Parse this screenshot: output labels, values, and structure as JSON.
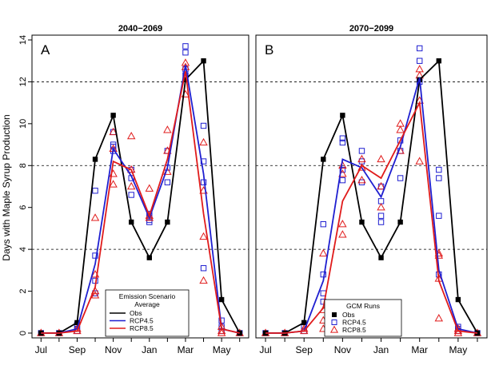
{
  "figure": {
    "ylabel": "Days with Maple Syrup Production"
  },
  "colors": {
    "obs": "#000000",
    "rcp45": "#1f1fd0",
    "rcp85": "#e01b1b",
    "grid": "#000000"
  },
  "chart_data": [
    {
      "type": "line",
      "panel_label": "A",
      "title": "2040−2069",
      "x_ticks": [
        "Jul",
        "Sep",
        "Nov",
        "Jan",
        "Mar",
        "May"
      ],
      "x_tick_positions": [
        0,
        2,
        4,
        6,
        8,
        10
      ],
      "ylim": [
        0,
        14
      ],
      "y_ticks": [
        0,
        2,
        4,
        6,
        8,
        10,
        12,
        14
      ],
      "grid_y": [
        4,
        8,
        12
      ],
      "legend": {
        "title": "Emission Scenario",
        "subtitle": "Average",
        "placement": "bottom-center",
        "entries": [
          "Obs",
          "RCP4.5",
          "RCP8.5"
        ]
      },
      "series": [
        {
          "name": "Obs",
          "style": "line+square",
          "x": [
            0,
            1,
            2,
            3,
            4,
            5,
            6,
            7,
            8,
            9,
            10,
            11
          ],
          "values": [
            0,
            0,
            0.5,
            8.3,
            10.4,
            5.3,
            3.6,
            5.3,
            12.1,
            13.0,
            1.6,
            0
          ]
        },
        {
          "name": "RCP4.5",
          "style": "line",
          "x": [
            0,
            1,
            2,
            3,
            4,
            5,
            6,
            7,
            8,
            9,
            10,
            11
          ],
          "values": [
            0,
            0,
            0.2,
            3.3,
            8.8,
            7.5,
            5.5,
            7.9,
            12.8,
            7.6,
            0.2,
            0
          ]
        },
        {
          "name": "RCP8.5",
          "style": "line",
          "x": [
            0,
            1,
            2,
            3,
            4,
            5,
            6,
            7,
            8,
            9,
            10,
            11
          ],
          "values": [
            0,
            0,
            0.1,
            2.2,
            8.2,
            7.8,
            5.6,
            8.3,
            12.5,
            5.7,
            0.2,
            0
          ]
        },
        {
          "name": "RCP4.5 runs",
          "style": "square-open",
          "points": [
            [
              0,
              0
            ],
            [
              1,
              0
            ],
            [
              2,
              0.2
            ],
            [
              2,
              0.4
            ],
            [
              2,
              0.1
            ],
            [
              3,
              1.9
            ],
            [
              3,
              2.5
            ],
            [
              3,
              3.7
            ],
            [
              3,
              6.8
            ],
            [
              4,
              8.7
            ],
            [
              4,
              9.0
            ],
            [
              4,
              9.6
            ],
            [
              4,
              8.9
            ],
            [
              5,
              6.6
            ],
            [
              5,
              7.4
            ],
            [
              5,
              7.8
            ],
            [
              6,
              5.3
            ],
            [
              6,
              5.4
            ],
            [
              6,
              5.5
            ],
            [
              6,
              5.7
            ],
            [
              7,
              7.2
            ],
            [
              7,
              7.9
            ],
            [
              7,
              8.7
            ],
            [
              8,
              13.4
            ],
            [
              8,
              13.7
            ],
            [
              8,
              12.6
            ],
            [
              8,
              12.3
            ],
            [
              9,
              3.1
            ],
            [
              9,
              7.2
            ],
            [
              9,
              8.2
            ],
            [
              9,
              9.9
            ],
            [
              10,
              0.1
            ],
            [
              10,
              0.3
            ],
            [
              10,
              0.6
            ],
            [
              11,
              0
            ]
          ]
        },
        {
          "name": "RCP8.5 runs",
          "style": "triangle-open",
          "points": [
            [
              0,
              0
            ],
            [
              1,
              0
            ],
            [
              2,
              0.1
            ],
            [
              2,
              0.2
            ],
            [
              3,
              1.8
            ],
            [
              3,
              2.0
            ],
            [
              3,
              2.8
            ],
            [
              3,
              5.5
            ],
            [
              4,
              7.1
            ],
            [
              4,
              7.6
            ],
            [
              4,
              8.8
            ],
            [
              4,
              9.6
            ],
            [
              5,
              7.0
            ],
            [
              5,
              7.8
            ],
            [
              5,
              9.4
            ],
            [
              6,
              5.5
            ],
            [
              6,
              5.6
            ],
            [
              6,
              6.9
            ],
            [
              7,
              7.7
            ],
            [
              7,
              8.7
            ],
            [
              7,
              9.7
            ],
            [
              8,
              11.4
            ],
            [
              8,
              12.7
            ],
            [
              8,
              12.9
            ],
            [
              9,
              2.5
            ],
            [
              9,
              4.6
            ],
            [
              9,
              6.8
            ],
            [
              9,
              9.1
            ],
            [
              10,
              0.0
            ],
            [
              10,
              0.1
            ],
            [
              10,
              0.3
            ],
            [
              11,
              0
            ]
          ]
        }
      ]
    },
    {
      "type": "line",
      "panel_label": "B",
      "title": "2070−2099",
      "x_ticks": [
        "Jul",
        "Sep",
        "Nov",
        "Jan",
        "Mar",
        "May"
      ],
      "x_tick_positions": [
        0,
        2,
        4,
        6,
        8,
        10
      ],
      "ylim": [
        0,
        14
      ],
      "y_ticks": [
        0,
        2,
        4,
        6,
        8,
        10,
        12,
        14
      ],
      "grid_y": [
        4,
        8,
        12
      ],
      "legend": {
        "title": "GCM Runs",
        "placement": "bottom-center",
        "entries": [
          "Obs",
          "RCP4.5",
          "RCP8.5"
        ]
      },
      "series": [
        {
          "name": "Obs",
          "style": "line+square",
          "x": [
            0,
            1,
            2,
            3,
            4,
            5,
            6,
            7,
            8,
            9,
            10,
            11
          ],
          "values": [
            0,
            0,
            0.5,
            8.3,
            10.4,
            5.3,
            3.6,
            5.3,
            12.1,
            13.0,
            1.6,
            0
          ]
        },
        {
          "name": "RCP4.5",
          "style": "line",
          "x": [
            0,
            1,
            2,
            3,
            4,
            5,
            6,
            7,
            8,
            9,
            10,
            11
          ],
          "values": [
            0,
            0,
            0.1,
            2.5,
            8.3,
            7.9,
            6.5,
            8.9,
            12.2,
            3.0,
            0.2,
            0
          ]
        },
        {
          "name": "RCP8.5",
          "style": "line",
          "x": [
            0,
            1,
            2,
            3,
            4,
            5,
            6,
            7,
            8,
            9,
            10,
            11
          ],
          "values": [
            0,
            0,
            0.1,
            1.2,
            6.3,
            8.0,
            7.4,
            9.2,
            11.0,
            2.5,
            0.1,
            0
          ]
        },
        {
          "name": "RCP4.5 runs",
          "style": "square-open",
          "points": [
            [
              0,
              0
            ],
            [
              1,
              0
            ],
            [
              2,
              0.1
            ],
            [
              2,
              0.3
            ],
            [
              3,
              1.5
            ],
            [
              3,
              1.9
            ],
            [
              3,
              2.8
            ],
            [
              3,
              5.2
            ],
            [
              4,
              7.3
            ],
            [
              4,
              7.8
            ],
            [
              4,
              9.1
            ],
            [
              4,
              9.3
            ],
            [
              5,
              7.2
            ],
            [
              5,
              8.2
            ],
            [
              5,
              8.7
            ],
            [
              6,
              5.3
            ],
            [
              6,
              5.6
            ],
            [
              6,
              6.3
            ],
            [
              6,
              7.0
            ],
            [
              7,
              7.4
            ],
            [
              7,
              8.7
            ],
            [
              7,
              9.2
            ],
            [
              8,
              12.0
            ],
            [
              8,
              13.0
            ],
            [
              8,
              13.6
            ],
            [
              9,
              2.8
            ],
            [
              9,
              5.6
            ],
            [
              9,
              7.4
            ],
            [
              9,
              7.8
            ],
            [
              10,
              0.1
            ],
            [
              10,
              0.2
            ],
            [
              10,
              0.3
            ],
            [
              11,
              0
            ]
          ]
        },
        {
          "name": "RCP8.5 runs",
          "style": "triangle-open",
          "points": [
            [
              0,
              0
            ],
            [
              1,
              0
            ],
            [
              2,
              0.1
            ],
            [
              2,
              0.2
            ],
            [
              3,
              0.2
            ],
            [
              3,
              0.6
            ],
            [
              3,
              1.1
            ],
            [
              3,
              3.8
            ],
            [
              4,
              4.7
            ],
            [
              4,
              5.2
            ],
            [
              4,
              7.6
            ],
            [
              4,
              8.0
            ],
            [
              5,
              7.3
            ],
            [
              5,
              7.9
            ],
            [
              5,
              8.3
            ],
            [
              6,
              6.0
            ],
            [
              6,
              7.0
            ],
            [
              6,
              8.3
            ],
            [
              7,
              8.7
            ],
            [
              7,
              9.7
            ],
            [
              7,
              10.0
            ],
            [
              8,
              8.2
            ],
            [
              8,
              11.1
            ],
            [
              8,
              12.3
            ],
            [
              8,
              12.6
            ],
            [
              9,
              0.7
            ],
            [
              9,
              2.6
            ],
            [
              9,
              3.7
            ],
            [
              9,
              3.8
            ],
            [
              10,
              0.0
            ],
            [
              10,
              0.1
            ],
            [
              10,
              0.2
            ],
            [
              11,
              0
            ]
          ]
        }
      ]
    }
  ]
}
